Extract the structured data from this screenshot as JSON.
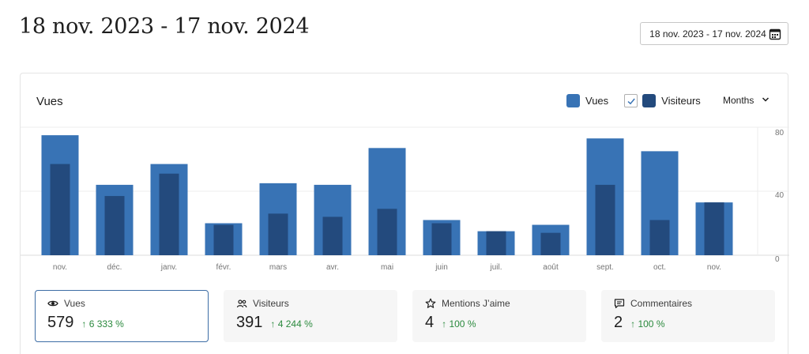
{
  "header": {
    "title": "18 nov. 2023 - 17 nov. 2024",
    "date_range_label": "18 nov. 2023 - 17 nov. 2024"
  },
  "card": {
    "title": "Vues",
    "legend": {
      "views_label": "Vues",
      "visitors_label": "Visiteurs",
      "visitors_checked": true
    },
    "period": "Months"
  },
  "colors": {
    "views": "#3873b5",
    "visitors": "#234a7d",
    "positive": "#2b8a3e"
  },
  "chart_data": {
    "type": "bar",
    "categories": [
      "nov.",
      "déc.",
      "janv.",
      "févr.",
      "mars",
      "avr.",
      "mai",
      "juin",
      "juil.",
      "août",
      "sept.",
      "oct.",
      "nov."
    ],
    "series": [
      {
        "name": "Vues",
        "values": [
          75,
          44,
          57,
          20,
          45,
          44,
          67,
          22,
          15,
          19,
          73,
          65,
          33
        ]
      },
      {
        "name": "Visiteurs",
        "values": [
          57,
          37,
          51,
          19,
          26,
          24,
          29,
          20,
          15,
          14,
          44,
          22,
          33
        ]
      }
    ],
    "yticks": [
      "80",
      "40",
      "0"
    ],
    "ylim": [
      0,
      80
    ],
    "grid": true
  },
  "stats": [
    {
      "icon": "eye-icon",
      "label": "Vues",
      "value": "579",
      "change": "↑ 6 333 %"
    },
    {
      "icon": "people-icon",
      "label": "Visiteurs",
      "value": "391",
      "change": "↑ 4 244 %"
    },
    {
      "icon": "star-icon",
      "label": "Mentions J’aime",
      "value": "4",
      "change": "↑ 100 %"
    },
    {
      "icon": "comment-icon",
      "label": "Commentaires",
      "value": "2",
      "change": "↑ 100 %"
    }
  ]
}
